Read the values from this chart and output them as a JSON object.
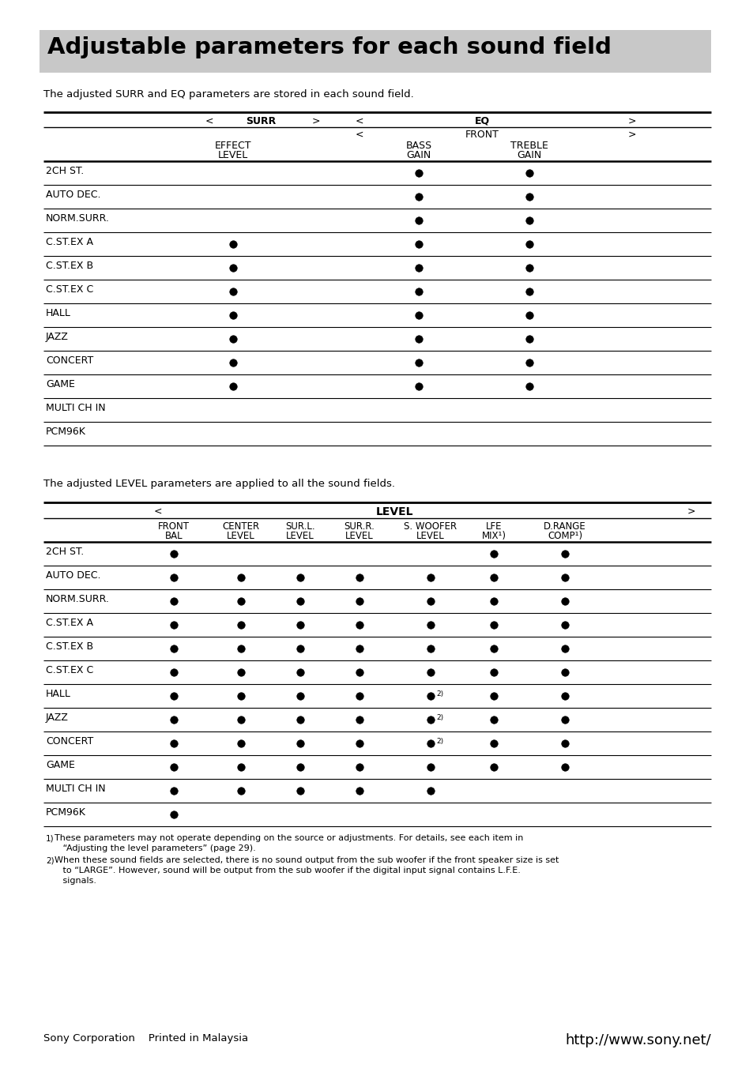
{
  "title": "Adjustable parameters for each sound field",
  "title_bg": "#c8c8c8",
  "page_bg": "#ffffff",
  "surr_intro": "The adjusted SURR and EQ parameters are stored in each sound field.",
  "level_intro": "The adjusted LEVEL parameters are applied to all the sound fields.",
  "table1_rows": [
    "2CH ST.",
    "AUTO DEC.",
    "NORM.SURR.",
    "C.ST.EX A",
    "C.ST.EX B",
    "C.ST.EX C",
    "HALL",
    "JAZZ",
    "CONCERT",
    "GAME",
    "MULTI CH IN",
    "PCM96K"
  ],
  "table1_dots": {
    "2CH ST.": [
      false,
      true,
      true
    ],
    "AUTO DEC.": [
      false,
      true,
      true
    ],
    "NORM.SURR.": [
      false,
      true,
      true
    ],
    "C.ST.EX A": [
      true,
      true,
      true
    ],
    "C.ST.EX B": [
      true,
      true,
      true
    ],
    "C.ST.EX C": [
      true,
      true,
      true
    ],
    "HALL": [
      true,
      true,
      true
    ],
    "JAZZ": [
      true,
      true,
      true
    ],
    "CONCERT": [
      true,
      true,
      true
    ],
    "GAME": [
      true,
      true,
      true
    ],
    "MULTI CH IN": [
      false,
      false,
      false
    ],
    "PCM96K": [
      false,
      false,
      false
    ]
  },
  "table2_rows": [
    "2CH ST.",
    "AUTO DEC.",
    "NORM.SURR.",
    "C.ST.EX A",
    "C.ST.EX B",
    "C.ST.EX C",
    "HALL",
    "JAZZ",
    "CONCERT",
    "GAME",
    "MULTI CH IN",
    "PCM96K"
  ],
  "table2_dots": {
    "2CH ST.": [
      true,
      false,
      false,
      false,
      false,
      true,
      true
    ],
    "AUTO DEC.": [
      true,
      true,
      true,
      true,
      true,
      true,
      true
    ],
    "NORM.SURR.": [
      true,
      true,
      true,
      true,
      true,
      true,
      true
    ],
    "C.ST.EX A": [
      true,
      true,
      true,
      true,
      true,
      true,
      true
    ],
    "C.ST.EX B": [
      true,
      true,
      true,
      true,
      true,
      true,
      true
    ],
    "C.ST.EX C": [
      true,
      true,
      true,
      true,
      true,
      true,
      true
    ],
    "HALL": [
      true,
      true,
      true,
      true,
      "2",
      true,
      true
    ],
    "JAZZ": [
      true,
      true,
      true,
      true,
      "2",
      true,
      true
    ],
    "CONCERT": [
      true,
      true,
      true,
      true,
      "2",
      true,
      true
    ],
    "GAME": [
      true,
      true,
      true,
      true,
      true,
      true,
      true
    ],
    "MULTI CH IN": [
      true,
      true,
      true,
      true,
      true,
      false,
      false
    ],
    "PCM96K": [
      true,
      false,
      false,
      false,
      false,
      false,
      false
    ]
  },
  "footnote1_super": "1)",
  "footnote1_text": " These parameters may not operate depending on the source or adjustments. For details, see each item in",
  "footnote1_cont": "   “Adjusting the level parameters” (page 29).",
  "footnote2_super": "2)",
  "footnote2_text": " When these sound fields are selected, there is no sound output from the sub woofer if the front speaker size is set",
  "footnote2_cont1": "   to “LARGE”. However, sound will be output from the sub woofer if the digital input signal contains L.F.E.",
  "footnote2_cont2": "   signals.",
  "footer_left": "Sony Corporation    Printed in Malaysia",
  "footer_right": "http://www.sony.net/"
}
